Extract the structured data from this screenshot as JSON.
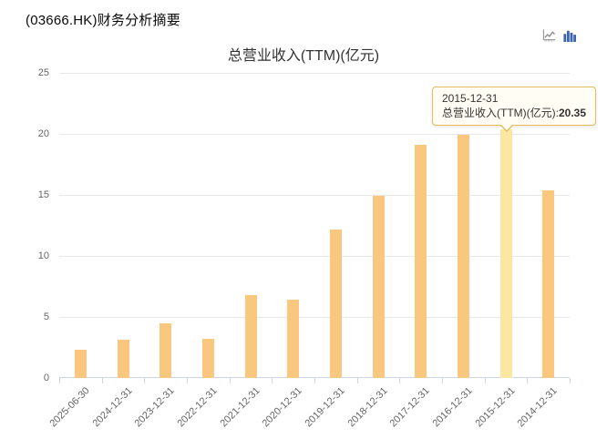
{
  "page_title": "(03666.HK)财务分析摘要",
  "toolbar": {
    "line_chart_icon": "line-chart-icon",
    "bar_chart_icon": "bar-chart-icon",
    "active_icon_color": "#3D64AE",
    "inactive_icon_color": "#9A9A9A"
  },
  "chart_data": {
    "type": "bar",
    "title": "总营业收入(TTM)(亿元)",
    "categories": [
      "2025-06-30",
      "2024-12-31",
      "2023-12-31",
      "2022-12-31",
      "2021-12-31",
      "2020-12-31",
      "2019-12-31",
      "2018-12-31",
      "2017-12-31",
      "2016-12-31",
      "2015-12-31",
      "2014-12-31"
    ],
    "values": [
      2.3,
      3.1,
      4.5,
      3.2,
      6.8,
      6.4,
      12.2,
      14.9,
      19.1,
      19.9,
      20.35,
      15.4
    ],
    "highlighted_index": 10,
    "xlabel": "",
    "ylabel": "",
    "ylim": [
      0,
      25
    ],
    "yticks": [
      0,
      5,
      10,
      15,
      20,
      25
    ],
    "grid": true,
    "legend": "none",
    "colors": {
      "bar": "#F9C87E",
      "bar_highlight": "#FBE7A2",
      "axis_line": "#CCD6EB",
      "gridline": "#E8E8E8",
      "axis_label": "#666666",
      "title": "#333333"
    }
  },
  "tooltip": {
    "date": "2015-12-31",
    "label": "总营业收入(TTM)(亿元):",
    "value": "20.35",
    "border_color": "#E5BC5F",
    "background": "#FFFDF4"
  }
}
